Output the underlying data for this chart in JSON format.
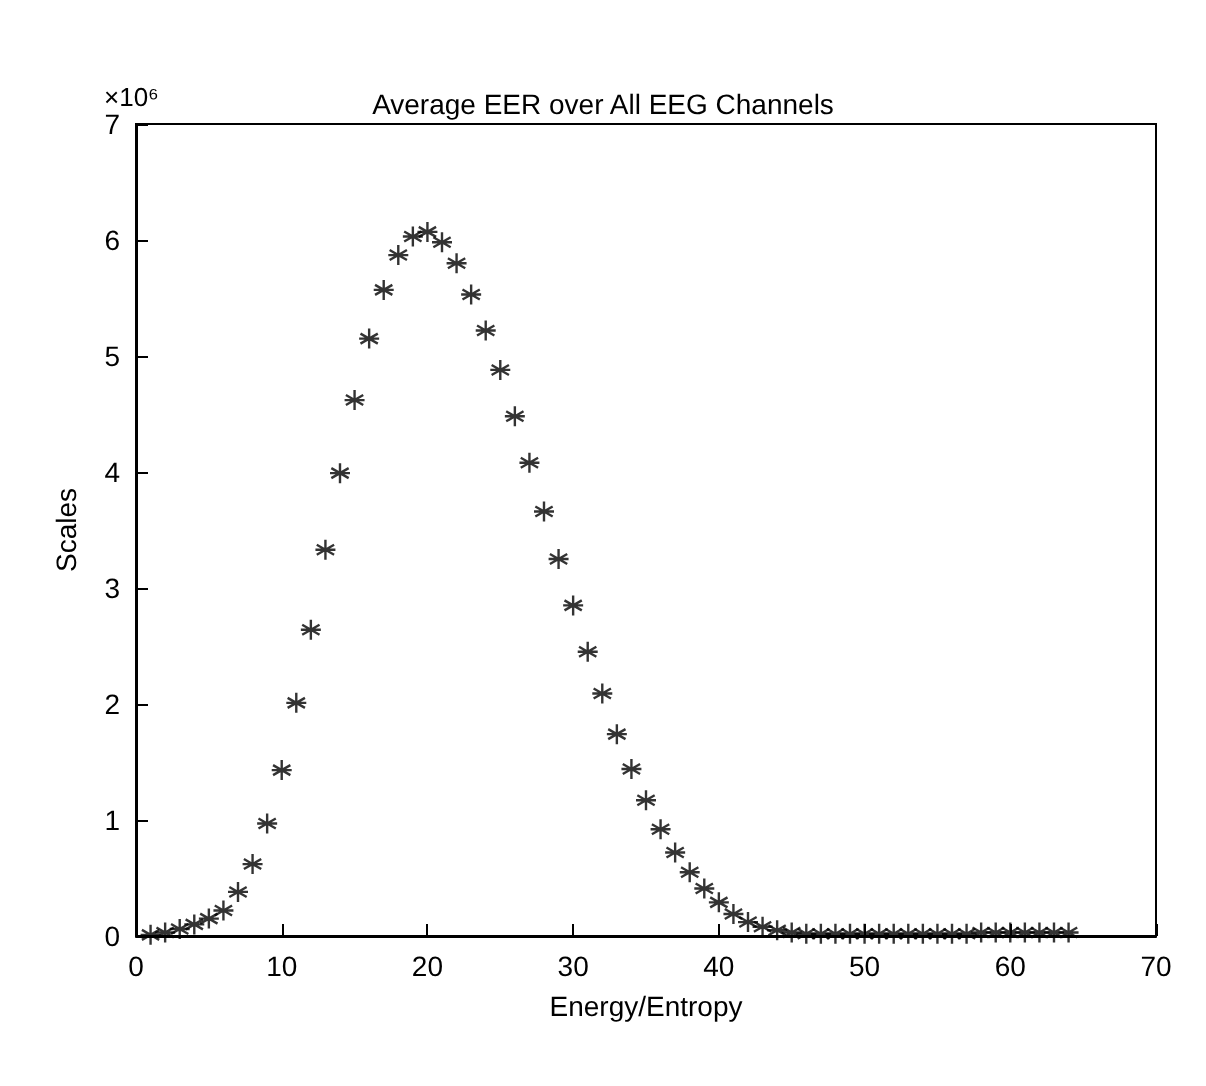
{
  "chart_data": {
    "type": "scatter",
    "title": "Average EER over All EEG Channels",
    "xlabel": "Energy/Entropy",
    "ylabel": "Scales",
    "annotations": [
      "×10⁶"
    ],
    "x": [
      1,
      2,
      3,
      4,
      5,
      6,
      7,
      8,
      9,
      10,
      11,
      12,
      13,
      14,
      15,
      16,
      17,
      18,
      19,
      20,
      21,
      22,
      23,
      24,
      25,
      26,
      27,
      28,
      29,
      30,
      31,
      32,
      33,
      34,
      35,
      36,
      37,
      38,
      39,
      40,
      41,
      42,
      43,
      44,
      45,
      46,
      47,
      48,
      49,
      50,
      51,
      52,
      53,
      54,
      55,
      56,
      57,
      58,
      59,
      60,
      61,
      62,
      63,
      64
    ],
    "series": [
      {
        "color": "#000000",
        "values": [
          0.01,
          0.03,
          0.06,
          0.1,
          0.15,
          0.22,
          0.38,
          0.62,
          0.97,
          1.43,
          2.01,
          2.64,
          3.33,
          3.99,
          4.62,
          5.15,
          5.57,
          5.87,
          6.03,
          6.07,
          5.98,
          5.8,
          5.53,
          5.22,
          4.88,
          4.48,
          4.08,
          3.66,
          3.25,
          2.85,
          2.45,
          2.09,
          1.74,
          1.44,
          1.17,
          0.92,
          0.72,
          0.55,
          0.41,
          0.29,
          0.19,
          0.12,
          0.08,
          0.05,
          0.03,
          0.02,
          0.02,
          0.02,
          0.02,
          0.02,
          0.02,
          0.02,
          0.02,
          0.02,
          0.02,
          0.02,
          0.02,
          0.03,
          0.03,
          0.03,
          0.03,
          0.03,
          0.03,
          0.03
        ]
      }
    ],
    "xlim": [
      0,
      70
    ],
    "xticks": [
      0,
      10,
      20,
      30,
      40,
      50,
      60,
      70
    ],
    "ylim": [
      0,
      7
    ],
    "yticks": [
      0,
      1,
      2,
      3,
      4,
      5,
      6,
      7
    ],
    "marker": "cross",
    "grid": false
  }
}
